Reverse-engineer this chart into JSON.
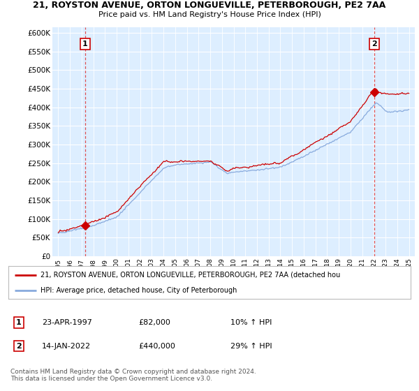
{
  "title1": "21, ROYSTON AVENUE, ORTON LONGUEVILLE, PETERBOROUGH, PE2 7AA",
  "title2": "Price paid vs. HM Land Registry's House Price Index (HPI)",
  "ylabel_ticks": [
    "£0",
    "£50K",
    "£100K",
    "£150K",
    "£200K",
    "£250K",
    "£300K",
    "£350K",
    "£400K",
    "£450K",
    "£500K",
    "£550K",
    "£600K"
  ],
  "ytick_vals": [
    0,
    50000,
    100000,
    150000,
    200000,
    250000,
    300000,
    350000,
    400000,
    450000,
    500000,
    550000,
    600000
  ],
  "ylim": [
    0,
    615000
  ],
  "xlim_start": 1994.5,
  "xlim_end": 2025.5,
  "sale1_x": 1997.31,
  "sale1_y": 82000,
  "sale2_x": 2022.04,
  "sale2_y": 440000,
  "legend_line1": "21, ROYSTON AVENUE, ORTON LONGUEVILLE, PETERBOROUGH, PE2 7AA (detached hou",
  "legend_line2": "HPI: Average price, detached house, City of Peterborough",
  "table_row1": [
    "1",
    "23-APR-1997",
    "£82,000",
    "10% ↑ HPI"
  ],
  "table_row2": [
    "2",
    "14-JAN-2022",
    "£440,000",
    "29% ↑ HPI"
  ],
  "footer": "Contains HM Land Registry data © Crown copyright and database right 2024.\nThis data is licensed under the Open Government Licence v3.0.",
  "price_color": "#cc0000",
  "hpi_color": "#88aadd",
  "bg_color": "#ddeeff",
  "sale_marker_color": "#cc0000",
  "vline_color": "#dd3333",
  "box_edge_color": "#cc0000"
}
